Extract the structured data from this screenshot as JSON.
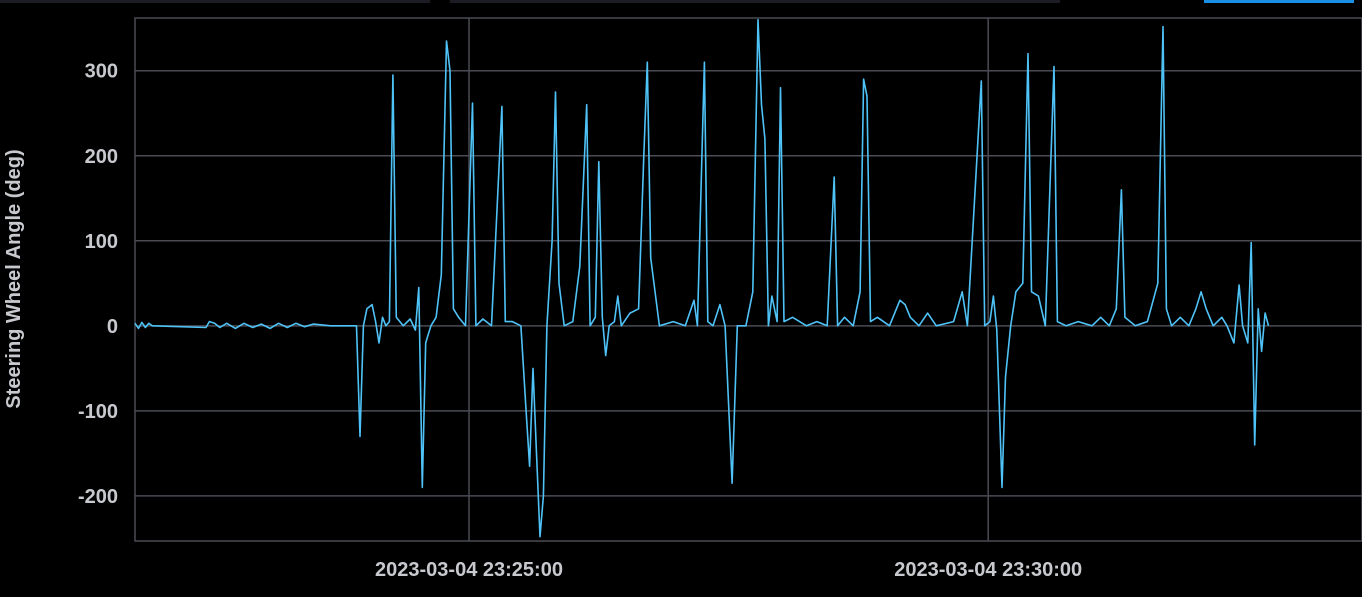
{
  "colors": {
    "background": "#000000",
    "grid": "#4a4b54",
    "text": "#c7c9ce",
    "series": "#4fc3f7",
    "active_tab": "#1a8fe3",
    "tab_bar": "#1c1d24"
  },
  "chart_data": {
    "type": "line",
    "ylabel": "Steering Wheel Angle (deg)",
    "xlabel": "",
    "ylim": [
      -253,
      362
    ],
    "xlim": [
      "2023-03-04 23:21:47",
      "2023-03-04 23:33:36"
    ],
    "yticks": [
      300,
      200,
      100,
      0,
      -100,
      -200
    ],
    "yticks_labels": [
      "300",
      "200",
      "100",
      "0",
      "-100",
      "-200"
    ],
    "xticks": [
      "2023-03-04 23:25:00",
      "2023-03-04 23:30:00"
    ],
    "grid": true,
    "series": [
      {
        "points": [
          [
            "2023-03-04 23:21:47",
            3
          ],
          [
            "2023-03-04 23:21:49",
            -3
          ],
          [
            "2023-03-04 23:21:51",
            4
          ],
          [
            "2023-03-04 23:21:53",
            -2
          ],
          [
            "2023-03-04 23:21:55",
            3
          ],
          [
            "2023-03-04 23:21:57",
            0
          ],
          [
            "2023-03-04 23:22:28",
            -2
          ],
          [
            "2023-03-04 23:22:30",
            5
          ],
          [
            "2023-03-04 23:22:33",
            3
          ],
          [
            "2023-03-04 23:22:36",
            -2
          ],
          [
            "2023-03-04 23:22:40",
            3
          ],
          [
            "2023-03-04 23:22:45",
            -3
          ],
          [
            "2023-03-04 23:22:50",
            3
          ],
          [
            "2023-03-04 23:22:55",
            -2
          ],
          [
            "2023-03-04 23:23:00",
            2
          ],
          [
            "2023-03-04 23:23:05",
            -3
          ],
          [
            "2023-03-04 23:23:10",
            3
          ],
          [
            "2023-03-04 23:23:15",
            -2
          ],
          [
            "2023-03-04 23:23:20",
            3
          ],
          [
            "2023-03-04 23:23:25",
            -1
          ],
          [
            "2023-03-04 23:23:30",
            2
          ],
          [
            "2023-03-04 23:23:40",
            0
          ],
          [
            "2023-03-04 23:23:55",
            0
          ],
          [
            "2023-03-04 23:23:57",
            -130
          ],
          [
            "2023-03-04 23:23:59",
            0
          ],
          [
            "2023-03-04 23:24:01",
            20
          ],
          [
            "2023-03-04 23:24:04",
            25
          ],
          [
            "2023-03-04 23:24:06",
            5
          ],
          [
            "2023-03-04 23:24:08",
            -20
          ],
          [
            "2023-03-04 23:24:10",
            10
          ],
          [
            "2023-03-04 23:24:12",
            0
          ],
          [
            "2023-03-04 23:24:14",
            5
          ],
          [
            "2023-03-04 23:24:16",
            295
          ],
          [
            "2023-03-04 23:24:18",
            10
          ],
          [
            "2023-03-04 23:24:22",
            0
          ],
          [
            "2023-03-04 23:24:26",
            8
          ],
          [
            "2023-03-04 23:24:29",
            -5
          ],
          [
            "2023-03-04 23:24:31",
            45
          ],
          [
            "2023-03-04 23:24:33",
            -190
          ],
          [
            "2023-03-04 23:24:35",
            -20
          ],
          [
            "2023-03-04 23:24:38",
            0
          ],
          [
            "2023-03-04 23:24:41",
            10
          ],
          [
            "2023-03-04 23:24:44",
            60
          ],
          [
            "2023-03-04 23:24:47",
            335
          ],
          [
            "2023-03-04 23:24:49",
            300
          ],
          [
            "2023-03-04 23:24:51",
            20
          ],
          [
            "2023-03-04 23:24:54",
            10
          ],
          [
            "2023-03-04 23:24:58",
            0
          ],
          [
            "2023-03-04 23:25:02",
            262
          ],
          [
            "2023-03-04 23:25:04",
            0
          ],
          [
            "2023-03-04 23:25:08",
            8
          ],
          [
            "2023-03-04 23:25:13",
            0
          ],
          [
            "2023-03-04 23:25:19",
            258
          ],
          [
            "2023-03-04 23:25:21",
            5
          ],
          [
            "2023-03-04 23:25:25",
            5
          ],
          [
            "2023-03-04 23:25:30",
            0
          ],
          [
            "2023-03-04 23:25:33",
            -100
          ],
          [
            "2023-03-04 23:25:35",
            -165
          ],
          [
            "2023-03-04 23:25:37",
            -50
          ],
          [
            "2023-03-04 23:25:39",
            -150
          ],
          [
            "2023-03-04 23:25:41",
            -248
          ],
          [
            "2023-03-04 23:25:43",
            -200
          ],
          [
            "2023-03-04 23:25:45",
            0
          ],
          [
            "2023-03-04 23:25:48",
            100
          ],
          [
            "2023-03-04 23:25:50",
            275
          ],
          [
            "2023-03-04 23:25:52",
            50
          ],
          [
            "2023-03-04 23:25:55",
            0
          ],
          [
            "2023-03-04 23:26:00",
            5
          ],
          [
            "2023-03-04 23:26:04",
            70
          ],
          [
            "2023-03-04 23:26:08",
            260
          ],
          [
            "2023-03-04 23:26:10",
            0
          ],
          [
            "2023-03-04 23:26:13",
            10
          ],
          [
            "2023-03-04 23:26:15",
            193
          ],
          [
            "2023-03-04 23:26:17",
            10
          ],
          [
            "2023-03-04 23:26:19",
            -35
          ],
          [
            "2023-03-04 23:26:21",
            0
          ],
          [
            "2023-03-04 23:26:24",
            5
          ],
          [
            "2023-03-04 23:26:26",
            35
          ],
          [
            "2023-03-04 23:26:28",
            0
          ],
          [
            "2023-03-04 23:26:33",
            15
          ],
          [
            "2023-03-04 23:26:38",
            20
          ],
          [
            "2023-03-04 23:26:41",
            200
          ],
          [
            "2023-03-04 23:26:43",
            310
          ],
          [
            "2023-03-04 23:26:45",
            80
          ],
          [
            "2023-03-04 23:26:50",
            0
          ],
          [
            "2023-03-04 23:26:58",
            5
          ],
          [
            "2023-03-04 23:27:05",
            0
          ],
          [
            "2023-03-04 23:27:10",
            30
          ],
          [
            "2023-03-04 23:27:12",
            0
          ],
          [
            "2023-03-04 23:27:16",
            310
          ],
          [
            "2023-03-04 23:27:18",
            5
          ],
          [
            "2023-03-04 23:27:21",
            0
          ],
          [
            "2023-03-04 23:27:25",
            25
          ],
          [
            "2023-03-04 23:27:28",
            0
          ],
          [
            "2023-03-04 23:27:32",
            -185
          ],
          [
            "2023-03-04 23:27:35",
            0
          ],
          [
            "2023-03-04 23:27:40",
            0
          ],
          [
            "2023-03-04 23:27:44",
            40
          ],
          [
            "2023-03-04 23:27:47",
            360
          ],
          [
            "2023-03-04 23:27:49",
            260
          ],
          [
            "2023-03-04 23:27:51",
            220
          ],
          [
            "2023-03-04 23:27:53",
            0
          ],
          [
            "2023-03-04 23:27:55",
            35
          ],
          [
            "2023-03-04 23:27:58",
            5
          ],
          [
            "2023-03-04 23:28:00",
            280
          ],
          [
            "2023-03-04 23:28:02",
            5
          ],
          [
            "2023-03-04 23:28:07",
            10
          ],
          [
            "2023-03-04 23:28:15",
            0
          ],
          [
            "2023-03-04 23:28:21",
            5
          ],
          [
            "2023-03-04 23:28:27",
            0
          ],
          [
            "2023-03-04 23:28:31",
            175
          ],
          [
            "2023-03-04 23:28:33",
            0
          ],
          [
            "2023-03-04 23:28:37",
            10
          ],
          [
            "2023-03-04 23:28:42",
            0
          ],
          [
            "2023-03-04 23:28:46",
            40
          ],
          [
            "2023-03-04 23:28:48",
            290
          ],
          [
            "2023-03-04 23:28:50",
            270
          ],
          [
            "2023-03-04 23:28:52",
            5
          ],
          [
            "2023-03-04 23:28:56",
            10
          ],
          [
            "2023-03-04 23:29:03",
            0
          ],
          [
            "2023-03-04 23:29:09",
            30
          ],
          [
            "2023-03-04 23:29:12",
            25
          ],
          [
            "2023-03-04 23:29:15",
            10
          ],
          [
            "2023-03-04 23:29:20",
            0
          ],
          [
            "2023-03-04 23:29:25",
            15
          ],
          [
            "2023-03-04 23:29:30",
            0
          ],
          [
            "2023-03-04 23:29:40",
            5
          ],
          [
            "2023-03-04 23:29:45",
            40
          ],
          [
            "2023-03-04 23:29:48",
            0
          ],
          [
            "2023-03-04 23:29:56",
            288
          ],
          [
            "2023-03-04 23:29:58",
            0
          ],
          [
            "2023-03-04 23:30:01",
            5
          ],
          [
            "2023-03-04 23:30:03",
            35
          ],
          [
            "2023-03-04 23:30:05",
            -5
          ],
          [
            "2023-03-04 23:30:08",
            -190
          ],
          [
            "2023-03-04 23:30:10",
            -60
          ],
          [
            "2023-03-04 23:30:13",
            0
          ],
          [
            "2023-03-04 23:30:16",
            40
          ],
          [
            "2023-03-04 23:30:20",
            50
          ],
          [
            "2023-03-04 23:30:23",
            320
          ],
          [
            "2023-03-04 23:30:25",
            40
          ],
          [
            "2023-03-04 23:30:29",
            35
          ],
          [
            "2023-03-04 23:30:33",
            0
          ],
          [
            "2023-03-04 23:30:38",
            305
          ],
          [
            "2023-03-04 23:30:40",
            5
          ],
          [
            "2023-03-04 23:30:45",
            0
          ],
          [
            "2023-03-04 23:30:52",
            5
          ],
          [
            "2023-03-04 23:31:00",
            0
          ],
          [
            "2023-03-04 23:31:05",
            10
          ],
          [
            "2023-03-04 23:31:10",
            0
          ],
          [
            "2023-03-04 23:31:14",
            20
          ],
          [
            "2023-03-04 23:31:17",
            160
          ],
          [
            "2023-03-04 23:31:19",
            10
          ],
          [
            "2023-03-04 23:31:25",
            0
          ],
          [
            "2023-03-04 23:31:32",
            5
          ],
          [
            "2023-03-04 23:31:38",
            50
          ],
          [
            "2023-03-04 23:31:41",
            352
          ],
          [
            "2023-03-04 23:31:43",
            20
          ],
          [
            "2023-03-04 23:31:46",
            0
          ],
          [
            "2023-03-04 23:31:51",
            10
          ],
          [
            "2023-03-04 23:31:56",
            0
          ],
          [
            "2023-03-04 23:32:00",
            20
          ],
          [
            "2023-03-04 23:32:03",
            40
          ],
          [
            "2023-03-04 23:32:06",
            20
          ],
          [
            "2023-03-04 23:32:10",
            0
          ],
          [
            "2023-03-04 23:32:15",
            10
          ],
          [
            "2023-03-04 23:32:18",
            0
          ],
          [
            "2023-03-04 23:32:22",
            -20
          ],
          [
            "2023-03-04 23:32:25",
            48
          ],
          [
            "2023-03-04 23:32:27",
            0
          ],
          [
            "2023-03-04 23:32:30",
            -20
          ],
          [
            "2023-03-04 23:32:32",
            98
          ],
          [
            "2023-03-04 23:32:34",
            -140
          ],
          [
            "2023-03-04 23:32:36",
            20
          ],
          [
            "2023-03-04 23:32:38",
            -30
          ],
          [
            "2023-03-04 23:32:40",
            15
          ],
          [
            "2023-03-04 23:32:42",
            0
          ]
        ]
      }
    ]
  }
}
